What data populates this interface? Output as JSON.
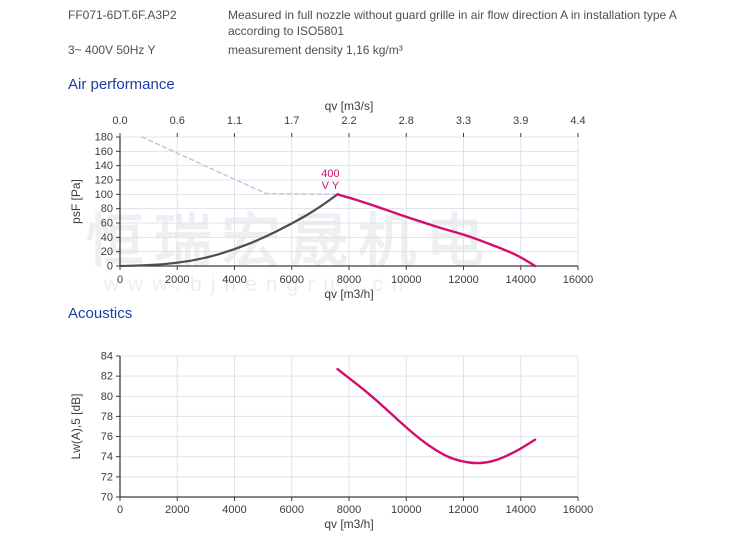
{
  "header": {
    "model": "FF071-6DT.6F.A3P2",
    "voltage": "3~ 400V 50Hz Y",
    "measurement_note": "Measured in full nozzle without guard grille in air flow direction A in installation type A according to ISO5801",
    "density": "measurement density 1,16 kg/m³"
  },
  "watermark": {
    "cjk": "恒瑞宏晟机电",
    "url": "www.bjhengrui.cn"
  },
  "colors": {
    "heading_blue": "#1d3da5",
    "text_gray": "#4f4f4f",
    "axis": "#3d3d3d",
    "grid": "#dde3eb",
    "curve_magenta": "#d40d6e",
    "curve_gray": "#4d4d4d",
    "dashed_blue": "#b9cade"
  },
  "chart_data": [
    {
      "type": "line",
      "title": "Air performance",
      "x_axis": {
        "label": "qv [m3/h]",
        "range": [
          0,
          16000
        ],
        "ticks": [
          0,
          2000,
          4000,
          6000,
          8000,
          10000,
          12000,
          14000,
          16000
        ]
      },
      "x_axis_top": {
        "label": "qv [m3/s]",
        "tick_labels": [
          "0.0",
          "0.6",
          "1.1",
          "1.7",
          "2.2",
          "2.8",
          "3.3",
          "3.9",
          "4.4"
        ]
      },
      "y_axis": {
        "label": "psF [Pa]",
        "range": [
          0,
          180
        ],
        "ticks": [
          0,
          20,
          40,
          60,
          80,
          100,
          120,
          140,
          160,
          180
        ]
      },
      "grid": true,
      "series": [
        {
          "name": "max-operating-boundary",
          "style": "dashed",
          "smooth": false,
          "color": "#b9cade",
          "width": 1.5,
          "points": [
            [
              770,
              180
            ],
            [
              5100,
              101
            ],
            [
              7500,
              100
            ]
          ]
        },
        {
          "name": "system-resistance-curve",
          "style": "solid",
          "smooth": true,
          "color": "#4d4d4d",
          "width": 2.2,
          "points": [
            [
              0,
              0
            ],
            [
              1000,
              1
            ],
            [
              2000,
              4
            ],
            [
              3000,
              11
            ],
            [
              4000,
              23
            ],
            [
              5000,
              39
            ],
            [
              6000,
              59
            ],
            [
              7000,
              82
            ],
            [
              7600,
              100
            ]
          ]
        },
        {
          "name": "fan-curve-400V-Y",
          "style": "solid",
          "smooth": true,
          "color": "#d40d6e",
          "width": 2.4,
          "points": [
            [
              7600,
              100
            ],
            [
              7750,
              98
            ],
            [
              8000,
              95.5
            ],
            [
              8500,
              89
            ],
            [
              9000,
              82.5
            ],
            [
              9500,
              75.5
            ],
            [
              10000,
              68.5
            ],
            [
              10500,
              62
            ],
            [
              11000,
              55.5
            ],
            [
              11500,
              49.5
            ],
            [
              12000,
              44
            ],
            [
              12500,
              37
            ],
            [
              13000,
              29.5
            ],
            [
              13500,
              21.5
            ],
            [
              14000,
              12.5
            ],
            [
              14500,
              0
            ]
          ]
        }
      ],
      "annotation": {
        "lines": [
          "400",
          "V Y"
        ],
        "x": 7350,
        "y": 124,
        "color": "#d40d6e"
      }
    },
    {
      "type": "line",
      "title": "Acoustics",
      "x_axis": {
        "label": "qv [m3/h]",
        "range": [
          0,
          16000
        ],
        "ticks": [
          0,
          2000,
          4000,
          6000,
          8000,
          10000,
          12000,
          14000,
          16000
        ]
      },
      "y_axis": {
        "label": "Lw(A),5 [dB]",
        "range": [
          70,
          84
        ],
        "ticks": [
          70,
          72,
          74,
          76,
          78,
          80,
          82,
          84
        ]
      },
      "grid": true,
      "series": [
        {
          "name": "sound-power-level-curve",
          "style": "solid",
          "smooth": true,
          "color": "#d40d6e",
          "width": 2.4,
          "points": [
            [
              7600,
              82.7
            ],
            [
              8000,
              81.8
            ],
            [
              8500,
              80.7
            ],
            [
              9000,
              79.5
            ],
            [
              9500,
              78.2
            ],
            [
              10000,
              76.9
            ],
            [
              10500,
              75.7
            ],
            [
              11000,
              74.7
            ],
            [
              11500,
              73.9
            ],
            [
              12000,
              73.5
            ],
            [
              12400,
              73.35
            ],
            [
              12800,
              73.4
            ],
            [
              13200,
              73.7
            ],
            [
              13600,
              74.2
            ],
            [
              14000,
              74.8
            ],
            [
              14500,
              75.7
            ]
          ]
        }
      ]
    }
  ]
}
